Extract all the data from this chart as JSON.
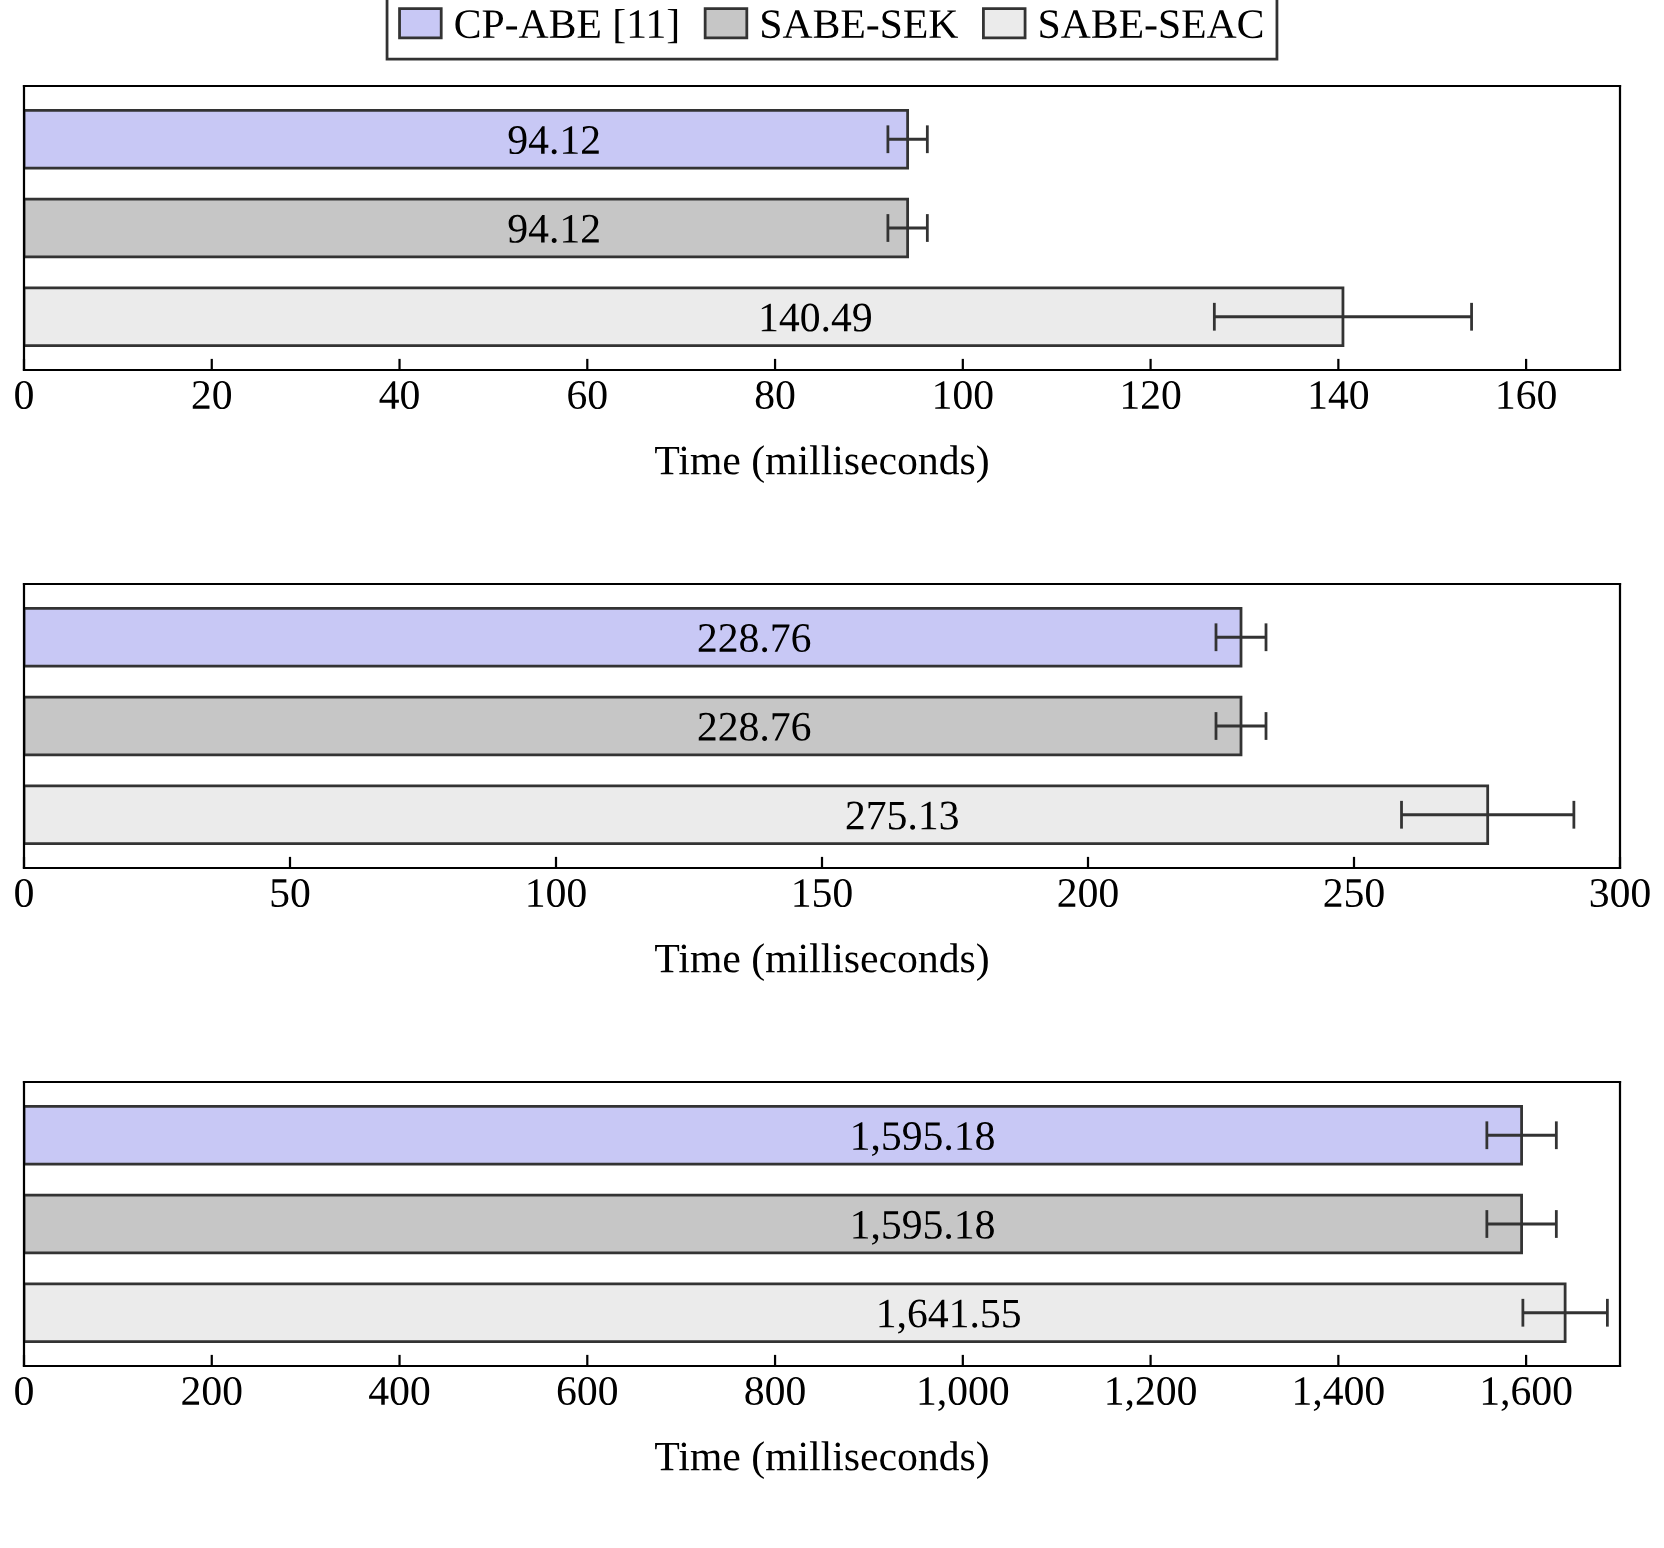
{
  "chart_data": [
    {
      "type": "bar",
      "orientation": "horizontal",
      "categories": [
        null
      ],
      "xlabel": "Time (milliseconds)",
      "xlim": [
        0,
        170
      ],
      "xticks": [
        0,
        20,
        40,
        60,
        80,
        100,
        120,
        140,
        160
      ],
      "legend": "top",
      "grid": false,
      "tick_labels": "x",
      "series": [
        {
          "name": "CP-ABE [11]",
          "color": "#c8c8f5",
          "values": [
            94.12
          ],
          "errors": [
            2.1
          ],
          "value_labels": [
            "94.12"
          ]
        },
        {
          "name": "SABE-SEK",
          "color": "#c6c6c6",
          "values": [
            94.12
          ],
          "errors": [
            2.1
          ],
          "value_labels": [
            "94.12"
          ]
        },
        {
          "name": "SABE-SEAC",
          "color": "#ebebeb",
          "values": [
            140.49
          ],
          "errors": [
            13.7
          ],
          "value_labels": [
            "140.49"
          ]
        }
      ]
    },
    {
      "type": "bar",
      "orientation": "horizontal",
      "categories": [
        null
      ],
      "xlabel": "Time (milliseconds)",
      "xlim": [
        0,
        300
      ],
      "xticks": [
        0,
        50,
        100,
        150,
        200,
        250,
        300
      ],
      "grid": false,
      "tick_labels": "x",
      "series": [
        {
          "color": "#c8c8f5",
          "values": [
            228.76
          ],
          "errors": [
            4.7
          ],
          "value_labels": [
            "228.76"
          ]
        },
        {
          "color": "#c6c6c6",
          "values": [
            228.76
          ],
          "errors": [
            4.7
          ],
          "value_labels": [
            "228.76"
          ]
        },
        {
          "color": "#ebebeb",
          "values": [
            275.13
          ],
          "errors": [
            16.2
          ],
          "value_labels": [
            "275.13"
          ]
        }
      ]
    },
    {
      "type": "bar",
      "orientation": "horizontal",
      "categories": [
        null
      ],
      "xlabel": "Time (milliseconds)",
      "xlim": [
        0,
        1700
      ],
      "xticks": [
        0,
        200,
        400,
        600,
        800,
        {
          "value": 1000,
          "label": "1,000"
        },
        {
          "value": 1200,
          "label": "1,200"
        },
        {
          "value": 1400,
          "label": "1,400"
        },
        {
          "value": 1600,
          "label": "1,600"
        }
      ],
      "grid": false,
      "tick_labels": "x",
      "series": [
        {
          "color": "#c8c8f5",
          "values": [
            1595.18
          ],
          "errors": [
            37
          ],
          "value_labels": [
            "1,595.18"
          ]
        },
        {
          "color": "#c6c6c6",
          "values": [
            1595.18
          ],
          "errors": [
            37
          ],
          "value_labels": [
            "1,595.18"
          ]
        },
        {
          "color": "#ebebeb",
          "values": [
            1641.55
          ],
          "errors": [
            45
          ],
          "value_labels": [
            "1,641.55"
          ]
        }
      ]
    }
  ]
}
